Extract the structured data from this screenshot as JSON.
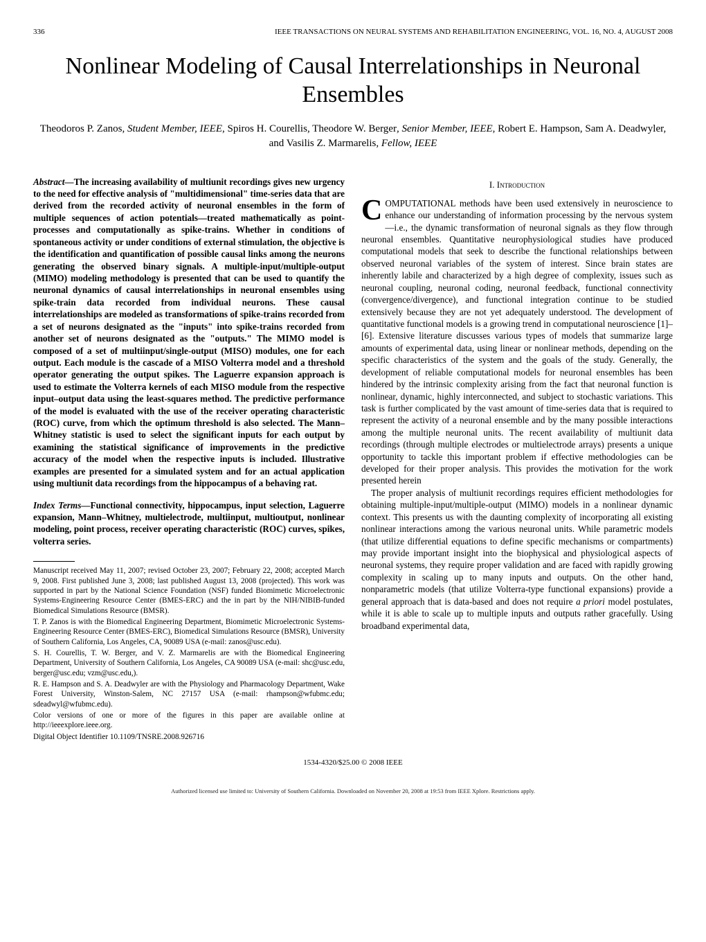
{
  "header": {
    "page_number": "336",
    "journal": "IEEE TRANSACTIONS ON NEURAL SYSTEMS AND REHABILITATION ENGINEERING, VOL. 16, NO. 4, AUGUST 2008"
  },
  "title": "Nonlinear Modeling of Causal Interrelationships in Neuronal Ensembles",
  "authors": {
    "a1_name": "Theodoros P. Zanos",
    "a1_role": ", Student Member, IEEE",
    "a2_name": ", Spiros H. Courellis, Theodore W. Berger",
    "a2_role": ", Senior Member, IEEE",
    "a3_name": ", Robert E. Hampson, Sam A. Deadwyler, and Vasilis Z. Marmarelis",
    "a3_role": ", Fellow, IEEE"
  },
  "abstract": {
    "label": "Abstract—",
    "text": "The increasing availability of multiunit recordings gives new urgency to the need for effective analysis of \"multidimensional\" time-series data that are derived from the recorded activity of neuronal ensembles in the form of multiple sequences of action potentials—treated mathematically as point-processes and computationally as spike-trains. Whether in conditions of spontaneous activity or under conditions of external stimulation, the objective is the identification and quantification of possible causal links among the neurons generating the observed binary signals. A multiple-input/multiple-output (MIMO) modeling methodology is presented that can be used to quantify the neuronal dynamics of causal interrelationships in neuronal ensembles using spike-train data recorded from individual neurons. These causal interrelationships are modeled as transformations of spike-trains recorded from a set of neurons designated as the \"inputs\" into spike-trains recorded from another set of neurons designated as the \"outputs.\" The MIMO model is composed of a set of multiinput/single-output (MISO) modules, one for each output. Each module is the cascade of a MISO Volterra model and a threshold operator generating the output spikes. The Laguerre expansion approach is used to estimate the Volterra kernels of each MISO module from the respective input–output data using the least-squares method. The predictive performance of the model is evaluated with the use of the receiver operating characteristic (ROC) curve, from which the optimum threshold is also selected. The Mann–Whitney statistic is used to select the significant inputs for each output by examining the statistical significance of improvements in the predictive accuracy of the model when the respective inputs is included. Illustrative examples are presented for a simulated system and for an actual application using multiunit data recordings from the hippocampus of a behaving rat."
  },
  "index_terms": {
    "label": "Index Terms—",
    "text": "Functional connectivity, hippocampus, input selection, Laguerre expansion, Mann–Whitney, multielectrode, multiinput, multioutput, nonlinear modeling, point process, receiver operating characteristic (ROC) curves, spikes, volterra series."
  },
  "manuscript": {
    "p1": "Manuscript received May 11, 2007; revised October 23, 2007; February 22, 2008; accepted March 9, 2008. First published June 3, 2008; last published August 13, 2008 (projected). This work was supported in part by the National Science Foundation (NSF) funded Biomimetic Microelectronic Systems-Engineering Resource Center (BMES-ERC) and the in part by the NIH/NIBIB-funded Biomedical Simulations Resource (BMSR).",
    "p2": "T. P. Zanos is with the Biomedical Engineering Department, Biomimetic Microelectronic Systems-Engineering Resource Center (BMES-ERC), Biomedical Simulations Resource (BMSR), University of Southern California, Los Angeles, CA, 90089 USA (e-mail: zanos@usc.edu).",
    "p3": "S. H. Courellis, T. W. Berger, and V. Z. Marmarelis are with the Biomedical Engineering Department, University of Southern California, Los Angeles, CA 90089 USA (e-mail: shc@usc.edu, berger@usc.edu; vzm@usc.edu,).",
    "p4": "R. E. Hampson and S. A. Deadwyler are with the Physiology and Pharmacology Department, Wake Forest University, Winston-Salem, NC 27157 USA (e-mail: rhampson@wfubmc.edu; sdeadwyl@wfubmc.edu).",
    "p5": "Color versions of one or more of the figures in this paper are available online at http://ieeexplore.ieee.org.",
    "p6": "Digital Object Identifier 10.1109/TNSRE.2008.926716"
  },
  "section1": {
    "heading": "I. Introduction",
    "dropcap": "C",
    "p1_after_drop": "OMPUTATIONAL methods have been used extensively in neuroscience to enhance our understanding of information processing by the nervous system—i.e., the dynamic transformation of neuronal signals as they flow through neuronal ensembles. Quantitative neurophysiological studies have produced computational models that seek to describe the functional relationships between observed neuronal variables of the system of interest. Since brain states are inherently labile and characterized by a high degree of complexity, issues such as neuronal coupling, neuronal coding, neuronal feedback, functional connectivity (convergence/divergence), and functional integration continue to be studied extensively because they are not yet adequately understood. The development of quantitative functional models is a growing trend in computational neuroscience [1]–[6]. Extensive literature discusses various types of models that summarize large amounts of experimental data, using linear or nonlinear methods, depending on the specific characteristics of the system and the goals of the study. Generally, the development of reliable computational models for neuronal ensembles has been hindered by the intrinsic complexity arising from the fact that neuronal function is nonlinear, dynamic, highly interconnected, and subject to stochastic variations. This task is further complicated by the vast amount of time-series data that is required to represent the activity of a neuronal ensemble and by the many possible interactions among the multiple neuronal units. The recent availability of multiunit data recordings (through multiple electrodes or multielectrode arrays) presents a unique opportunity to tackle this important problem if effective methodologies can be developed for their proper analysis. This provides the motivation for the work presented herein",
    "p2_pre_italic": "The proper analysis of multiunit recordings requires efficient methodologies for obtaining multiple-input/multiple-output (MIMO) models in a nonlinear dynamic context. This presents us with the daunting complexity of incorporating all existing nonlinear interactions among the various neuronal units. While parametric models (that utilize differential equations to define specific mechanisms or compartments) may provide important insight into the biophysical and physiological aspects of neuronal systems, they require proper validation and are faced with rapidly growing complexity in scaling up to many inputs and outputs. On the other hand, nonparametric models (that utilize Volterra-type functional expansions) provide a general approach that is data-based and does not require ",
    "p2_italic": "a priori",
    "p2_post_italic": " model postulates, while it is able to scale up to multiple inputs and outputs rather gracefully. Using broadband experimental data,"
  },
  "footer": {
    "copyright": "1534-4320/$25.00 © 2008 IEEE",
    "fine": "Authorized licensed use limited to: University of Southern California. Downloaded on November 20, 2008 at 19:53 from IEEE Xplore. Restrictions apply."
  }
}
